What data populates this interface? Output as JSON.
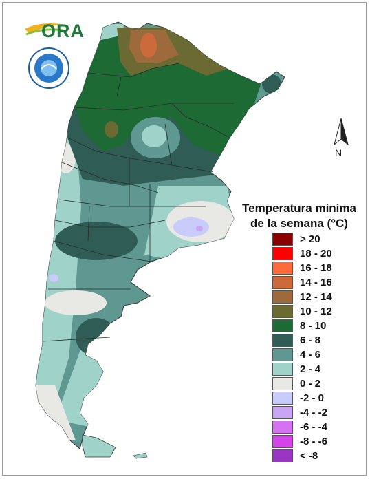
{
  "logo": {
    "brand_text": "ORA",
    "seal_text": "SERVICIO METEOROLOGICO NACIONAL ARGENTINA"
  },
  "legend": {
    "title_line1": "Temperatura mínima",
    "title_line2": "de la semana (°C)",
    "items": [
      {
        "label": "> 20",
        "color": "#8b0000"
      },
      {
        "label": "18 - 20",
        "color": "#ff0000"
      },
      {
        "label": "16 - 18",
        "color": "#ff6a3a"
      },
      {
        "label": "14 - 16",
        "color": "#cc6a3c"
      },
      {
        "label": "12 - 14",
        "color": "#9d6a3c"
      },
      {
        "label": "10 - 12",
        "color": "#6b6a32"
      },
      {
        "label": "8 - 10",
        "color": "#1e6a34"
      },
      {
        "label": "6 - 8",
        "color": "#2f5d56"
      },
      {
        "label": "4 - 6",
        "color": "#5f9890"
      },
      {
        "label": "2 - 4",
        "color": "#9fd2c9"
      },
      {
        "label": "0 - 2",
        "color": "#e8e8e4"
      },
      {
        "label": "-2 - 0",
        "color": "#c9ccfb"
      },
      {
        "label": "-4 - -2",
        "color": "#c9a5f4"
      },
      {
        "label": "-6 - -4",
        "color": "#d472f2"
      },
      {
        "label": "-8 - -6",
        "color": "#d444ea"
      },
      {
        "label": "< -8",
        "color": "#9b36c4"
      }
    ]
  },
  "north_arrow": {
    "label": "N"
  }
}
